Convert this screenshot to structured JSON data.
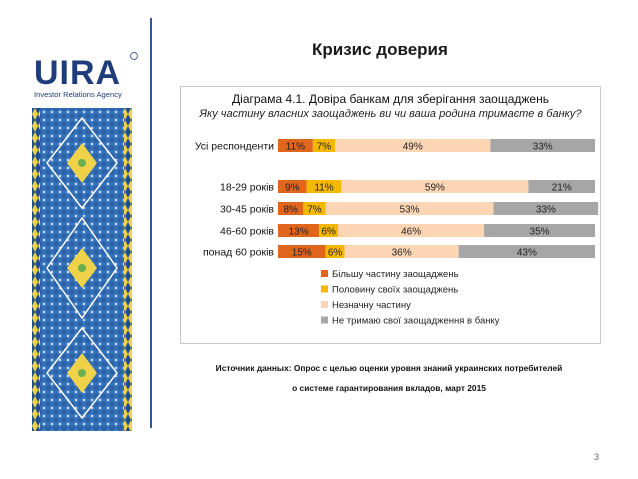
{
  "logo": {
    "tagline": "Investor Relations Agency",
    "wordmark": "UIRA"
  },
  "slide": {
    "title": "Кризис доверия",
    "page_number": "3"
  },
  "source": {
    "line1": "Источник данных: Опрос с целью оценки уровня знаний украинских потребителей",
    "line2": "о системе гарантирования вкладов, март 2015"
  },
  "chart_data": {
    "type": "bar",
    "orientation": "horizontal",
    "stacked": true,
    "title": "Діаграма 4.1. Довіра банкам для зберігання заощаджень",
    "subtitle": "Яку частину власних заощаджень ви чи ваша родина тримаєте в банку?",
    "categories": [
      "Усі респонденти",
      "18-29 років",
      "30-45 років",
      "46-60 років",
      "понад 60 років"
    ],
    "series": [
      {
        "name": "Більшу частину заощаджень",
        "color": "#e0661e",
        "values": [
          11,
          9,
          8,
          13,
          15
        ]
      },
      {
        "name": "Половину своїх заощаджень",
        "color": "#f5b800",
        "values": [
          7,
          11,
          7,
          6,
          6
        ]
      },
      {
        "name": "Незначну частину",
        "color": "#fcd5b5",
        "values": [
          49,
          59,
          53,
          46,
          36
        ]
      },
      {
        "name": "Не тримаю свої заощадження в банку",
        "color": "#a6a6a6",
        "values": [
          33,
          21,
          33,
          35,
          43
        ]
      }
    ],
    "xlim": [
      0,
      100
    ],
    "unit": "%",
    "legend_position": "bottom"
  }
}
